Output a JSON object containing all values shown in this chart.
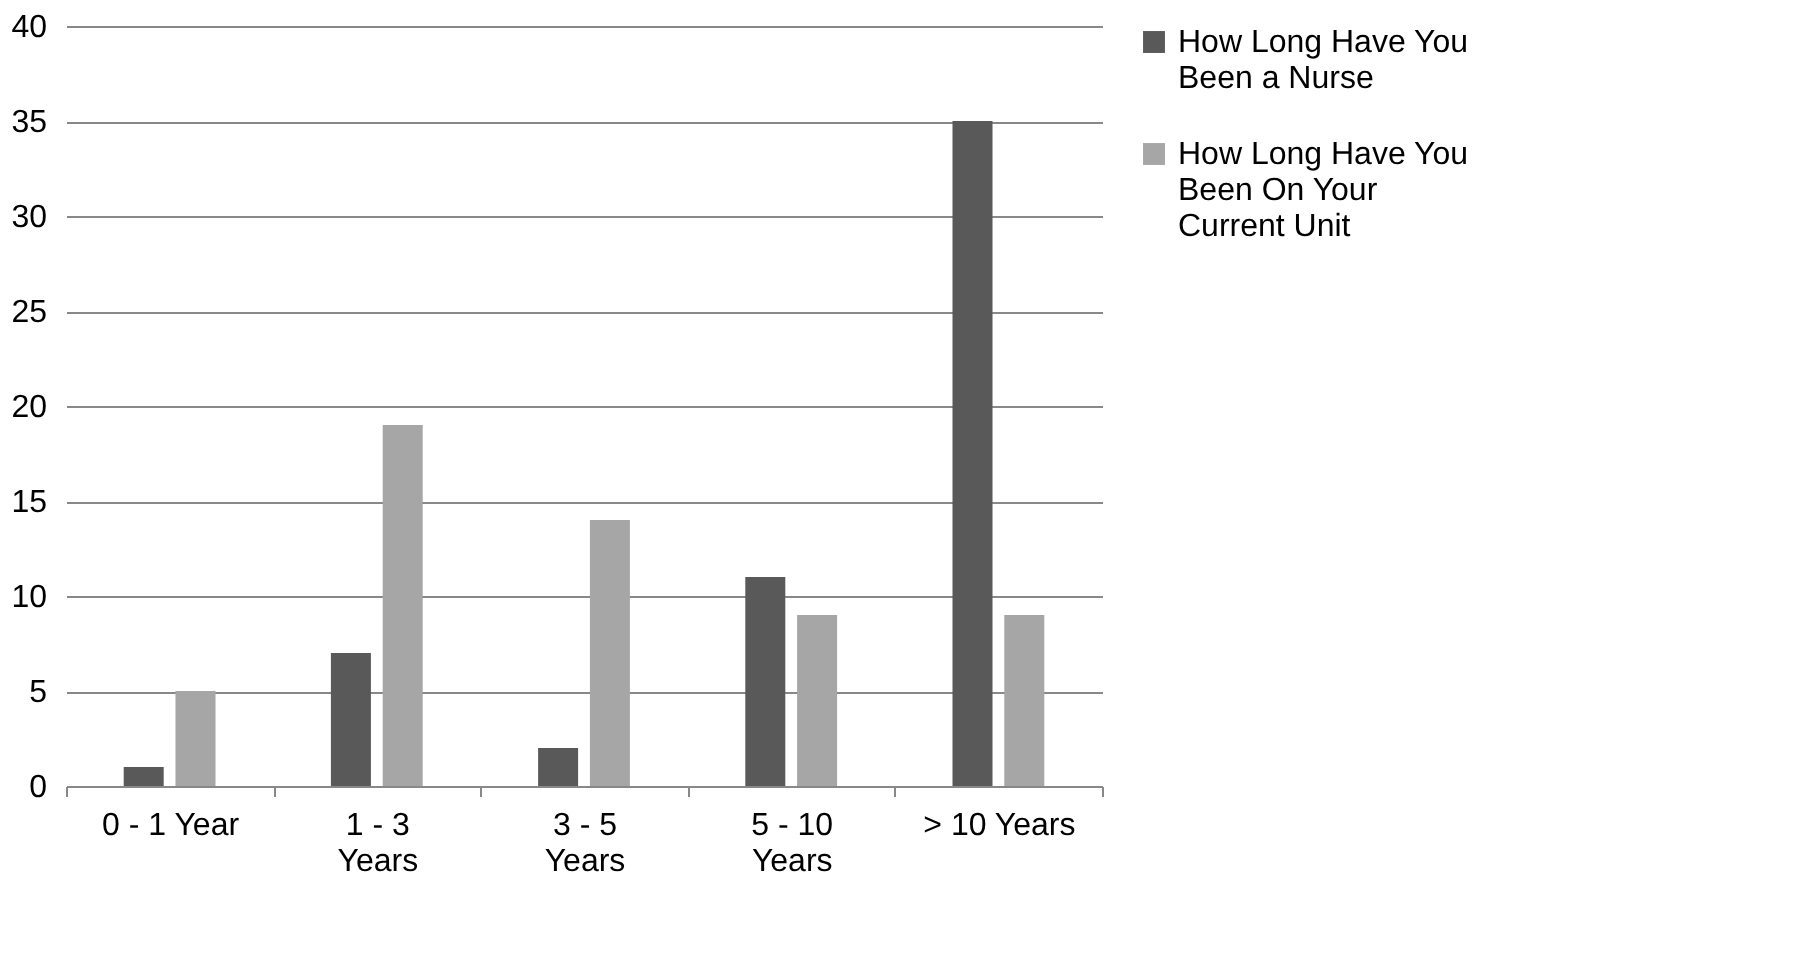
{
  "chart_data": {
    "type": "bar",
    "categories": [
      "0 - 1 Year",
      "1 - 3 Years",
      "3 - 5 Years",
      "5 - 10 Years",
      "> 10 Years"
    ],
    "series": [
      {
        "name": "How Long Have You Been a Nurse",
        "color": "#595959",
        "values": [
          1,
          7,
          2,
          11,
          35
        ]
      },
      {
        "name": "How Long Have You Been On Your Current Unit",
        "color": "#a6a6a6",
        "values": [
          5,
          19,
          14,
          9,
          9
        ]
      }
    ],
    "ylim": [
      0,
      40
    ],
    "yticks": [
      0,
      5,
      10,
      15,
      20,
      25,
      30,
      35,
      40
    ],
    "grid": "y",
    "legend": "right"
  }
}
